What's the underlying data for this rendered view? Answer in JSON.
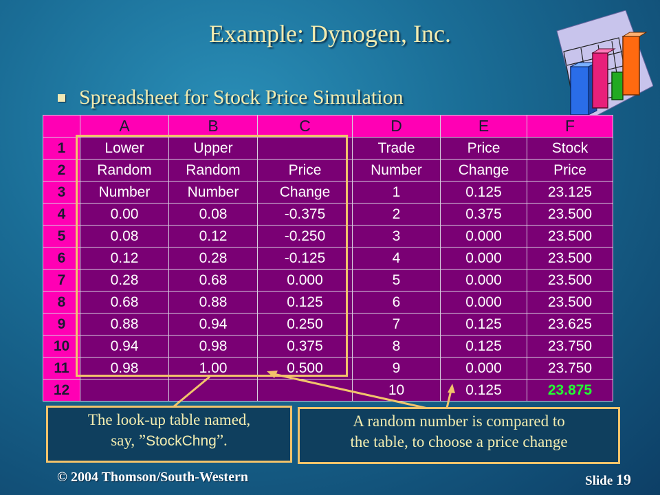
{
  "slide": {
    "title": "Example:  Dynogen, Inc.",
    "bullet": "Spreadsheet for Stock Price Simulation",
    "clipart_icon": "bar-chart-clipart-icon"
  },
  "sheet": {
    "col_headers": [
      "A",
      "B",
      "C",
      "D",
      "E",
      "F"
    ],
    "rows": [
      {
        "num": "1",
        "cells": [
          "Lower",
          "Upper",
          "",
          "Trade",
          "Price",
          "Stock"
        ]
      },
      {
        "num": "2",
        "cells": [
          "Random",
          "Random",
          "Price",
          "Number",
          "Change",
          "Price"
        ]
      },
      {
        "num": "3",
        "cells": [
          "Number",
          "Number",
          "Change",
          "1",
          "0.125",
          "23.125"
        ]
      },
      {
        "num": "4",
        "cells": [
          "0.00",
          "0.08",
          "-0.375",
          "2",
          "0.375",
          "23.500"
        ]
      },
      {
        "num": "5",
        "cells": [
          "0.08",
          "0.12",
          "-0.250",
          "3",
          "0.000",
          "23.500"
        ]
      },
      {
        "num": "6",
        "cells": [
          "0.12",
          "0.28",
          "-0.125",
          "4",
          "0.000",
          "23.500"
        ]
      },
      {
        "num": "7",
        "cells": [
          "0.28",
          "0.68",
          "0.000",
          "5",
          "0.000",
          "23.500"
        ]
      },
      {
        "num": "8",
        "cells": [
          "0.68",
          "0.88",
          "0.125",
          "6",
          "0.000",
          "23.500"
        ]
      },
      {
        "num": "9",
        "cells": [
          "0.88",
          "0.94",
          "0.250",
          "7",
          "0.125",
          "23.625"
        ]
      },
      {
        "num": "10",
        "cells": [
          "0.94",
          "0.98",
          "0.375",
          "8",
          "0.125",
          "23.750"
        ]
      },
      {
        "num": "11",
        "cells": [
          "0.98",
          "1.00",
          "0.500",
          "9",
          "0.000",
          "23.750"
        ]
      },
      {
        "num": "12",
        "cells": [
          "",
          "",
          "",
          "10",
          "0.125",
          "23.875"
        ]
      }
    ],
    "highlight_color": "#22ff33"
  },
  "callouts": {
    "left_line1": "The look-up table named,",
    "left_line2_pre": "say, ”",
    "left_line2_name": "StockChng",
    "left_line2_post": "”.",
    "right_line1": "A random number is compared to",
    "right_line2": "the table, to choose a price change"
  },
  "footer": {
    "copyright": "© 2004  Thomson/South-Western",
    "slide_label": "Slide",
    "slide_number": "19"
  },
  "colors": {
    "title": "#f2ecb0",
    "cell_bg": "#7a0074",
    "header_bg": "#ff00b4",
    "callout_border": "#f2c36b"
  }
}
